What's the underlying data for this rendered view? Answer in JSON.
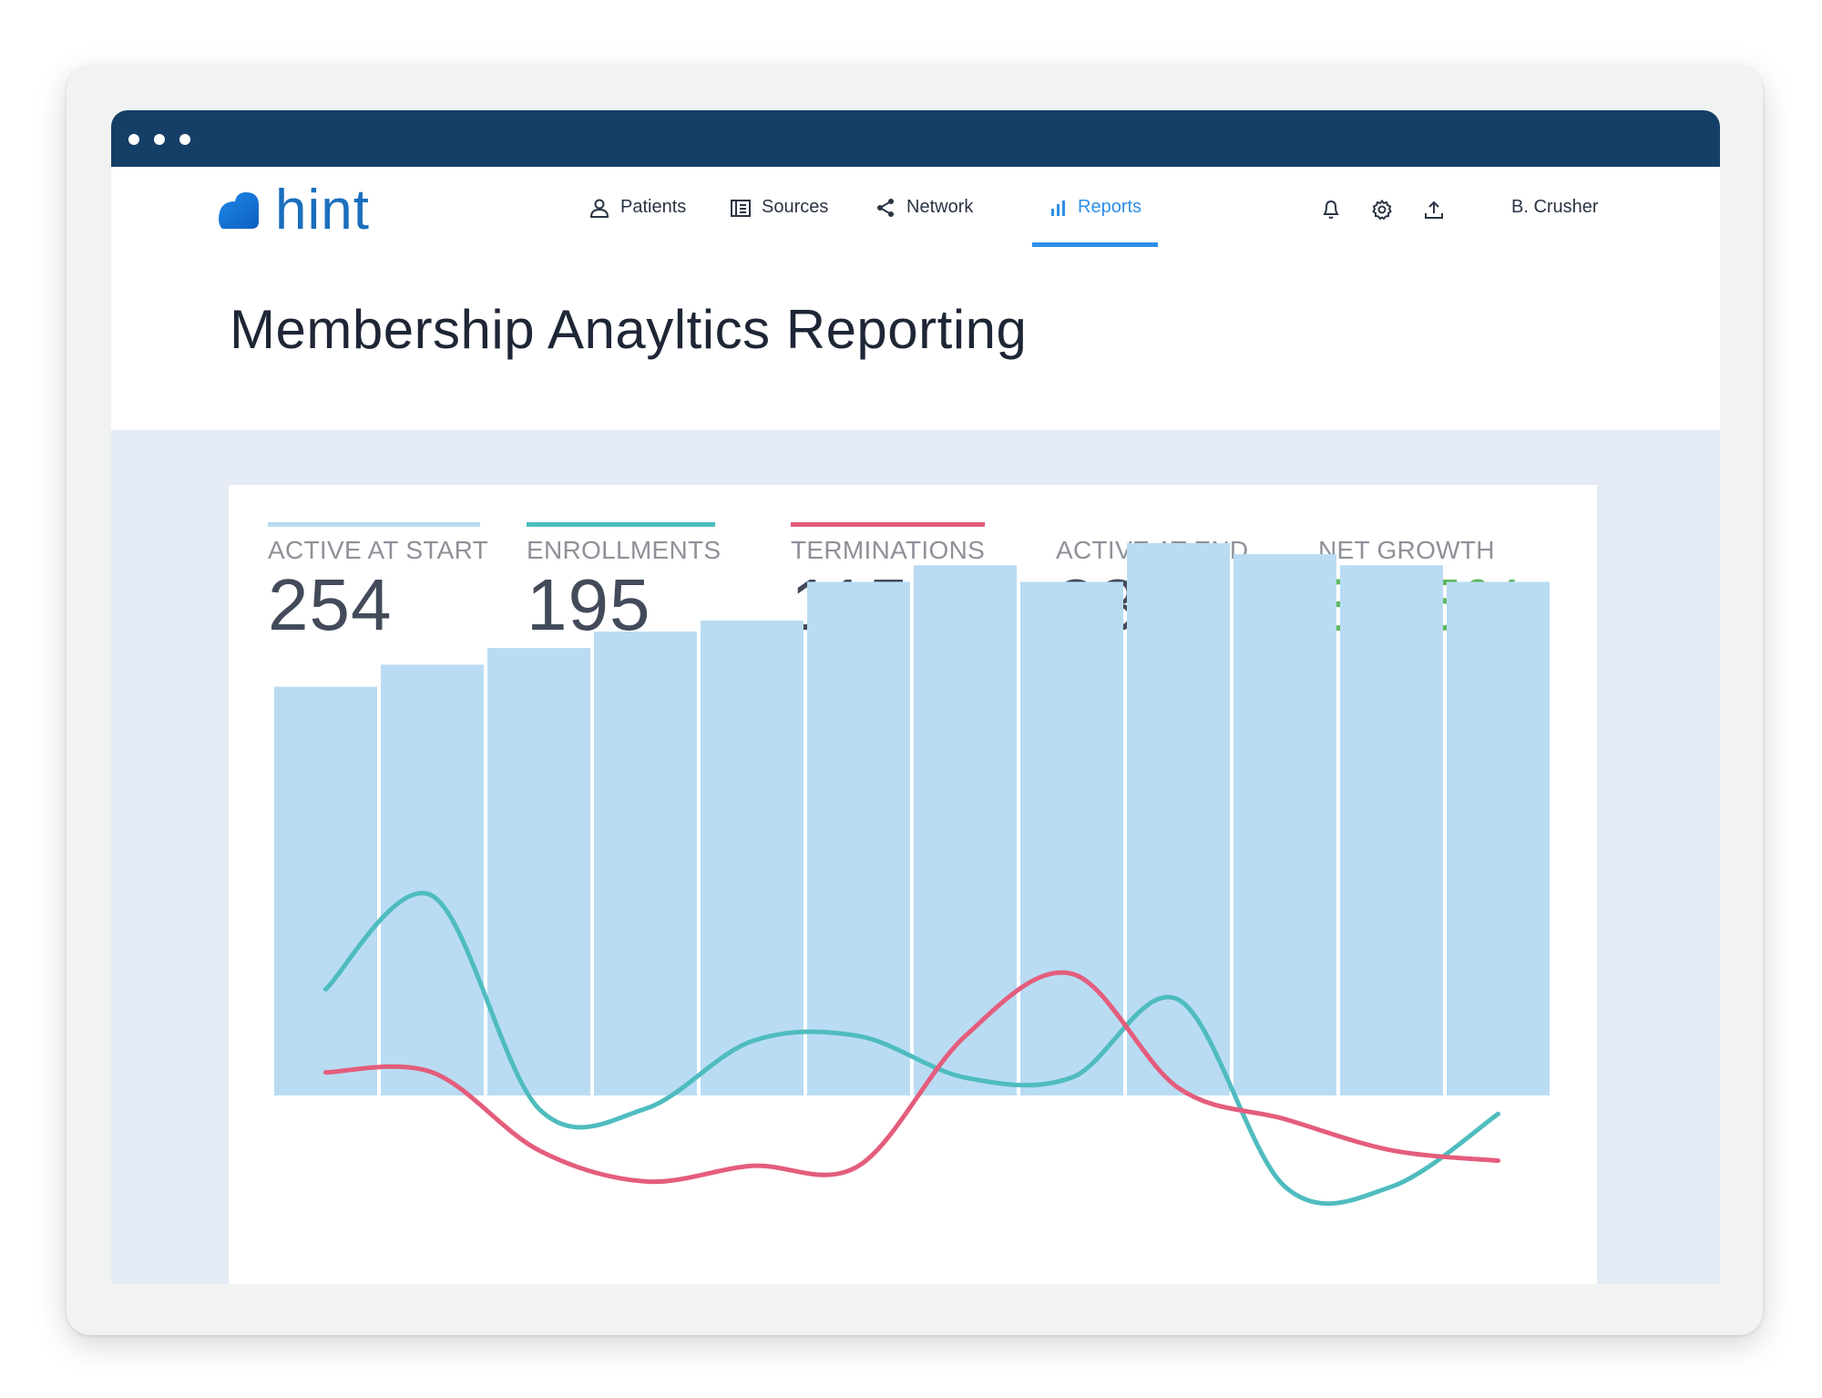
{
  "app": {
    "brand": "hint",
    "window_dots": 3
  },
  "nav": {
    "items": [
      {
        "label": "Patients",
        "icon": "person-icon"
      },
      {
        "label": "Sources",
        "icon": "building-icon"
      },
      {
        "label": "Network",
        "icon": "share-icon"
      },
      {
        "label": "Reports",
        "icon": "bar-chart-icon",
        "active": true
      }
    ],
    "tools": [
      "bell-icon",
      "gear-icon",
      "upload-icon"
    ],
    "user": "B. Crusher"
  },
  "page": {
    "title": "Membership Anayltics Reporting"
  },
  "kpis": [
    {
      "label": "ACTIVE AT START",
      "value": "254",
      "bar_color": "#b9dcf3"
    },
    {
      "label": "ENROLLMENTS",
      "value": "195",
      "bar_color": "#4fbcbf"
    },
    {
      "label": "TERMINATIONS",
      "value": "115",
      "bar_color": "#e45d7c"
    },
    {
      "label": "ACTIVE AT END",
      "value": "334"
    },
    {
      "label": "NET GROWTH",
      "value": "31.5%",
      "value_color": "#5cb85c"
    }
  ],
  "colors": {
    "titlebar": "#163f68",
    "accent": "#2e8fe8",
    "bars": "#b9dcf3",
    "enrollments": "#4fbcbf",
    "terminations": "#e45d7c",
    "growth": "#5cb85c"
  },
  "chart_data": {
    "type": "bar",
    "ylim": [
      0,
      100
    ],
    "bars": {
      "values": [
        74,
        78,
        81,
        84,
        86,
        93,
        96,
        93,
        100,
        98,
        96,
        93
      ]
    },
    "series": [
      {
        "key": "enrollments",
        "values": [
          45,
          63,
          22,
          22,
          35,
          36,
          28,
          28,
          43,
          7,
          7,
          21
        ]
      },
      {
        "key": "terminations",
        "values": [
          29,
          29,
          14,
          8,
          11,
          11,
          36,
          48,
          26,
          20,
          14,
          12
        ]
      }
    ],
    "grid": false,
    "legend": "none"
  }
}
